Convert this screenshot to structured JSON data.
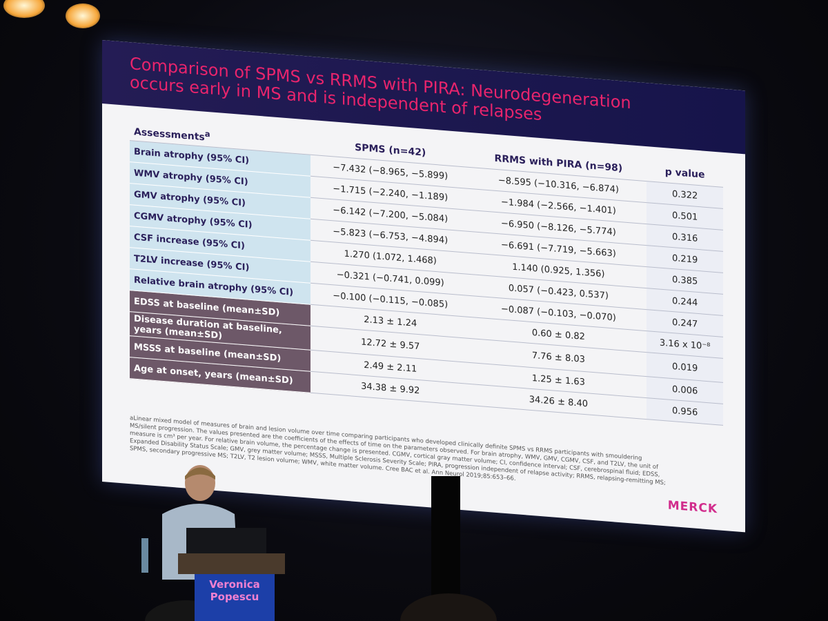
{
  "slide": {
    "title": [
      "Comparison of SPMS vs RRMS with PIRA: Neurodegeneration",
      "occurs early in MS and is independent of relapses"
    ],
    "table": {
      "corner": "Assessments",
      "corner_note": "a",
      "columns": [
        "SPMS (n=42)",
        "RRMS with PIRA (n=98)",
        "p value"
      ],
      "rows": [
        [
          "Brain atrophy (95% CI)",
          "−7.432 (−8.965, −5.899)",
          "−8.595 (−10.316, −6.874)",
          "0.322"
        ],
        [
          "WMV atrophy (95% CI)",
          "−1.715 (−2.240, −1.189)",
          "−1.984 (−2.566, −1.401)",
          "0.501"
        ],
        [
          "GMV atrophy (95% CI)",
          "−6.142 (−7.200, −5.084)",
          "−6.950 (−8.126, −5.774)",
          "0.316"
        ],
        [
          "CGMV atrophy (95% CI)",
          "−5.823 (−6.753, −4.894)",
          "−6.691 (−7.719, −5.663)",
          "0.219"
        ],
        [
          "CSF increase (95% CI)",
          "1.270 (1.072, 1.468)",
          "1.140 (0.925, 1.356)",
          "0.385"
        ],
        [
          "T2LV increase (95% CI)",
          "−0.321 (−0.741, 0.099)",
          "0.057 (−0.423, 0.537)",
          "0.244"
        ],
        [
          "Relative brain atrophy (95% CI)",
          "−0.100 (−0.115, −0.085)",
          "−0.087 (−0.103, −0.070)",
          "0.247"
        ],
        [
          "EDSS at baseline (mean±SD)",
          "2.13 ± 1.24",
          "0.60 ± 0.82",
          "3.16 x 10⁻⁸"
        ],
        [
          "Disease duration at baseline, years (mean±SD)",
          "12.72 ± 9.57",
          "7.76 ± 8.03",
          "0.019"
        ],
        [
          "MSSS at baseline (mean±SD)",
          "2.49 ± 2.11",
          "1.25 ± 1.63",
          "0.006"
        ],
        [
          "Age at onset, years (mean±SD)",
          "34.38 ± 9.92",
          "34.26 ± 8.40",
          "0.956"
        ]
      ]
    },
    "footnote": "aLinear mixed model of measures of brain and lesion volume over time comparing participants who developed clinically definite SPMS vs RRMS participants with smouldering MS/silent progression. The values presented are the coefficients of the effects of time on the parameters observed. For brain atrophy, WMV, GMV, CGMV, CSF, and T2LV, the unit of measure is cm³ per year. For relative brain volume, the percentage change is presented. CGMV, cortical gray matter volume; CI, confidence interval; CSF, cerebrospinal fluid; EDSS, Expanded Disability Status Scale; GMV, grey matter volume; MSSS, Multiple Sclerosis Severity Scale; PIRA, progression independent of relapse activity; RRMS, relapsing-remitting MS; SPMS, secondary progressive MS; T2LV, T2 lesion volume; WMV, white matter volume. Cree BAC et al. Ann Neurol 2019;85:653–66.",
    "logo": "MERCK"
  },
  "podium": {
    "name": [
      "Veronica",
      "Popescu"
    ]
  }
}
